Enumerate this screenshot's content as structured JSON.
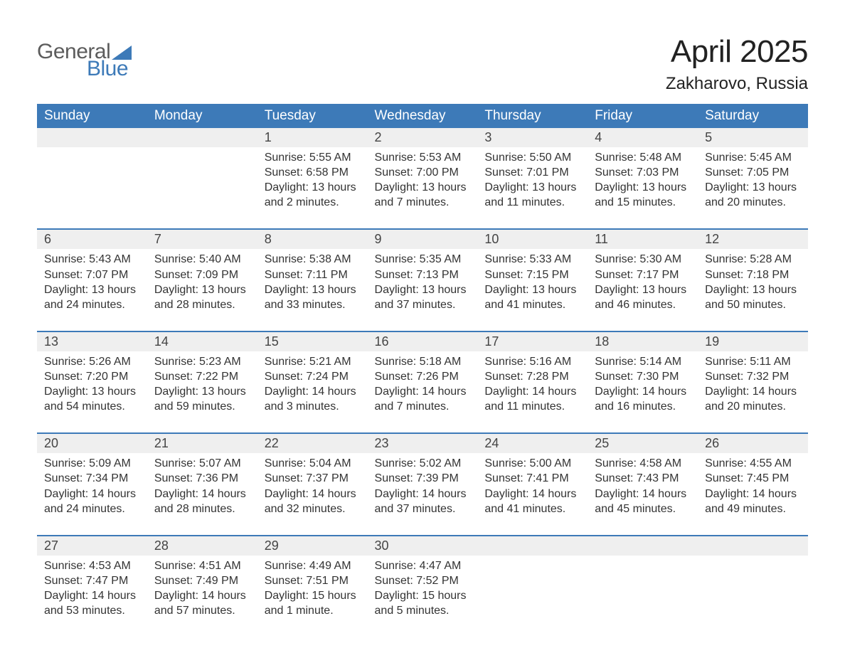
{
  "logo": {
    "word1": "General",
    "word2": "Blue"
  },
  "title": {
    "main": "April 2025",
    "sub": "Zakharovo, Russia"
  },
  "style": {
    "header_bg": "#3d7ab8",
    "header_text": "#ffffff",
    "row_separator": "#3d7ab8",
    "daynum_band": "#efefef",
    "body_text": "#333333",
    "page_bg": "#ffffff",
    "title_fontsize": 44,
    "subtitle_fontsize": 24,
    "header_fontsize": 19,
    "daynum_fontsize": 18,
    "cell_fontsize": 16
  },
  "days": [
    "Sunday",
    "Monday",
    "Tuesday",
    "Wednesday",
    "Thursday",
    "Friday",
    "Saturday"
  ],
  "weeks": [
    [
      null,
      null,
      {
        "n": "1",
        "sunrise": "Sunrise: 5:55 AM",
        "sunset": "Sunset: 6:58 PM",
        "d1": "Daylight: 13 hours",
        "d2": "and 2 minutes."
      },
      {
        "n": "2",
        "sunrise": "Sunrise: 5:53 AM",
        "sunset": "Sunset: 7:00 PM",
        "d1": "Daylight: 13 hours",
        "d2": "and 7 minutes."
      },
      {
        "n": "3",
        "sunrise": "Sunrise: 5:50 AM",
        "sunset": "Sunset: 7:01 PM",
        "d1": "Daylight: 13 hours",
        "d2": "and 11 minutes."
      },
      {
        "n": "4",
        "sunrise": "Sunrise: 5:48 AM",
        "sunset": "Sunset: 7:03 PM",
        "d1": "Daylight: 13 hours",
        "d2": "and 15 minutes."
      },
      {
        "n": "5",
        "sunrise": "Sunrise: 5:45 AM",
        "sunset": "Sunset: 7:05 PM",
        "d1": "Daylight: 13 hours",
        "d2": "and 20 minutes."
      }
    ],
    [
      {
        "n": "6",
        "sunrise": "Sunrise: 5:43 AM",
        "sunset": "Sunset: 7:07 PM",
        "d1": "Daylight: 13 hours",
        "d2": "and 24 minutes."
      },
      {
        "n": "7",
        "sunrise": "Sunrise: 5:40 AM",
        "sunset": "Sunset: 7:09 PM",
        "d1": "Daylight: 13 hours",
        "d2": "and 28 minutes."
      },
      {
        "n": "8",
        "sunrise": "Sunrise: 5:38 AM",
        "sunset": "Sunset: 7:11 PM",
        "d1": "Daylight: 13 hours",
        "d2": "and 33 minutes."
      },
      {
        "n": "9",
        "sunrise": "Sunrise: 5:35 AM",
        "sunset": "Sunset: 7:13 PM",
        "d1": "Daylight: 13 hours",
        "d2": "and 37 minutes."
      },
      {
        "n": "10",
        "sunrise": "Sunrise: 5:33 AM",
        "sunset": "Sunset: 7:15 PM",
        "d1": "Daylight: 13 hours",
        "d2": "and 41 minutes."
      },
      {
        "n": "11",
        "sunrise": "Sunrise: 5:30 AM",
        "sunset": "Sunset: 7:17 PM",
        "d1": "Daylight: 13 hours",
        "d2": "and 46 minutes."
      },
      {
        "n": "12",
        "sunrise": "Sunrise: 5:28 AM",
        "sunset": "Sunset: 7:18 PM",
        "d1": "Daylight: 13 hours",
        "d2": "and 50 minutes."
      }
    ],
    [
      {
        "n": "13",
        "sunrise": "Sunrise: 5:26 AM",
        "sunset": "Sunset: 7:20 PM",
        "d1": "Daylight: 13 hours",
        "d2": "and 54 minutes."
      },
      {
        "n": "14",
        "sunrise": "Sunrise: 5:23 AM",
        "sunset": "Sunset: 7:22 PM",
        "d1": "Daylight: 13 hours",
        "d2": "and 59 minutes."
      },
      {
        "n": "15",
        "sunrise": "Sunrise: 5:21 AM",
        "sunset": "Sunset: 7:24 PM",
        "d1": "Daylight: 14 hours",
        "d2": "and 3 minutes."
      },
      {
        "n": "16",
        "sunrise": "Sunrise: 5:18 AM",
        "sunset": "Sunset: 7:26 PM",
        "d1": "Daylight: 14 hours",
        "d2": "and 7 minutes."
      },
      {
        "n": "17",
        "sunrise": "Sunrise: 5:16 AM",
        "sunset": "Sunset: 7:28 PM",
        "d1": "Daylight: 14 hours",
        "d2": "and 11 minutes."
      },
      {
        "n": "18",
        "sunrise": "Sunrise: 5:14 AM",
        "sunset": "Sunset: 7:30 PM",
        "d1": "Daylight: 14 hours",
        "d2": "and 16 minutes."
      },
      {
        "n": "19",
        "sunrise": "Sunrise: 5:11 AM",
        "sunset": "Sunset: 7:32 PM",
        "d1": "Daylight: 14 hours",
        "d2": "and 20 minutes."
      }
    ],
    [
      {
        "n": "20",
        "sunrise": "Sunrise: 5:09 AM",
        "sunset": "Sunset: 7:34 PM",
        "d1": "Daylight: 14 hours",
        "d2": "and 24 minutes."
      },
      {
        "n": "21",
        "sunrise": "Sunrise: 5:07 AM",
        "sunset": "Sunset: 7:36 PM",
        "d1": "Daylight: 14 hours",
        "d2": "and 28 minutes."
      },
      {
        "n": "22",
        "sunrise": "Sunrise: 5:04 AM",
        "sunset": "Sunset: 7:37 PM",
        "d1": "Daylight: 14 hours",
        "d2": "and 32 minutes."
      },
      {
        "n": "23",
        "sunrise": "Sunrise: 5:02 AM",
        "sunset": "Sunset: 7:39 PM",
        "d1": "Daylight: 14 hours",
        "d2": "and 37 minutes."
      },
      {
        "n": "24",
        "sunrise": "Sunrise: 5:00 AM",
        "sunset": "Sunset: 7:41 PM",
        "d1": "Daylight: 14 hours",
        "d2": "and 41 minutes."
      },
      {
        "n": "25",
        "sunrise": "Sunrise: 4:58 AM",
        "sunset": "Sunset: 7:43 PM",
        "d1": "Daylight: 14 hours",
        "d2": "and 45 minutes."
      },
      {
        "n": "26",
        "sunrise": "Sunrise: 4:55 AM",
        "sunset": "Sunset: 7:45 PM",
        "d1": "Daylight: 14 hours",
        "d2": "and 49 minutes."
      }
    ],
    [
      {
        "n": "27",
        "sunrise": "Sunrise: 4:53 AM",
        "sunset": "Sunset: 7:47 PM",
        "d1": "Daylight: 14 hours",
        "d2": "and 53 minutes."
      },
      {
        "n": "28",
        "sunrise": "Sunrise: 4:51 AM",
        "sunset": "Sunset: 7:49 PM",
        "d1": "Daylight: 14 hours",
        "d2": "and 57 minutes."
      },
      {
        "n": "29",
        "sunrise": "Sunrise: 4:49 AM",
        "sunset": "Sunset: 7:51 PM",
        "d1": "Daylight: 15 hours",
        "d2": "and 1 minute."
      },
      {
        "n": "30",
        "sunrise": "Sunrise: 4:47 AM",
        "sunset": "Sunset: 7:52 PM",
        "d1": "Daylight: 15 hours",
        "d2": "and 5 minutes."
      },
      null,
      null,
      null
    ]
  ]
}
